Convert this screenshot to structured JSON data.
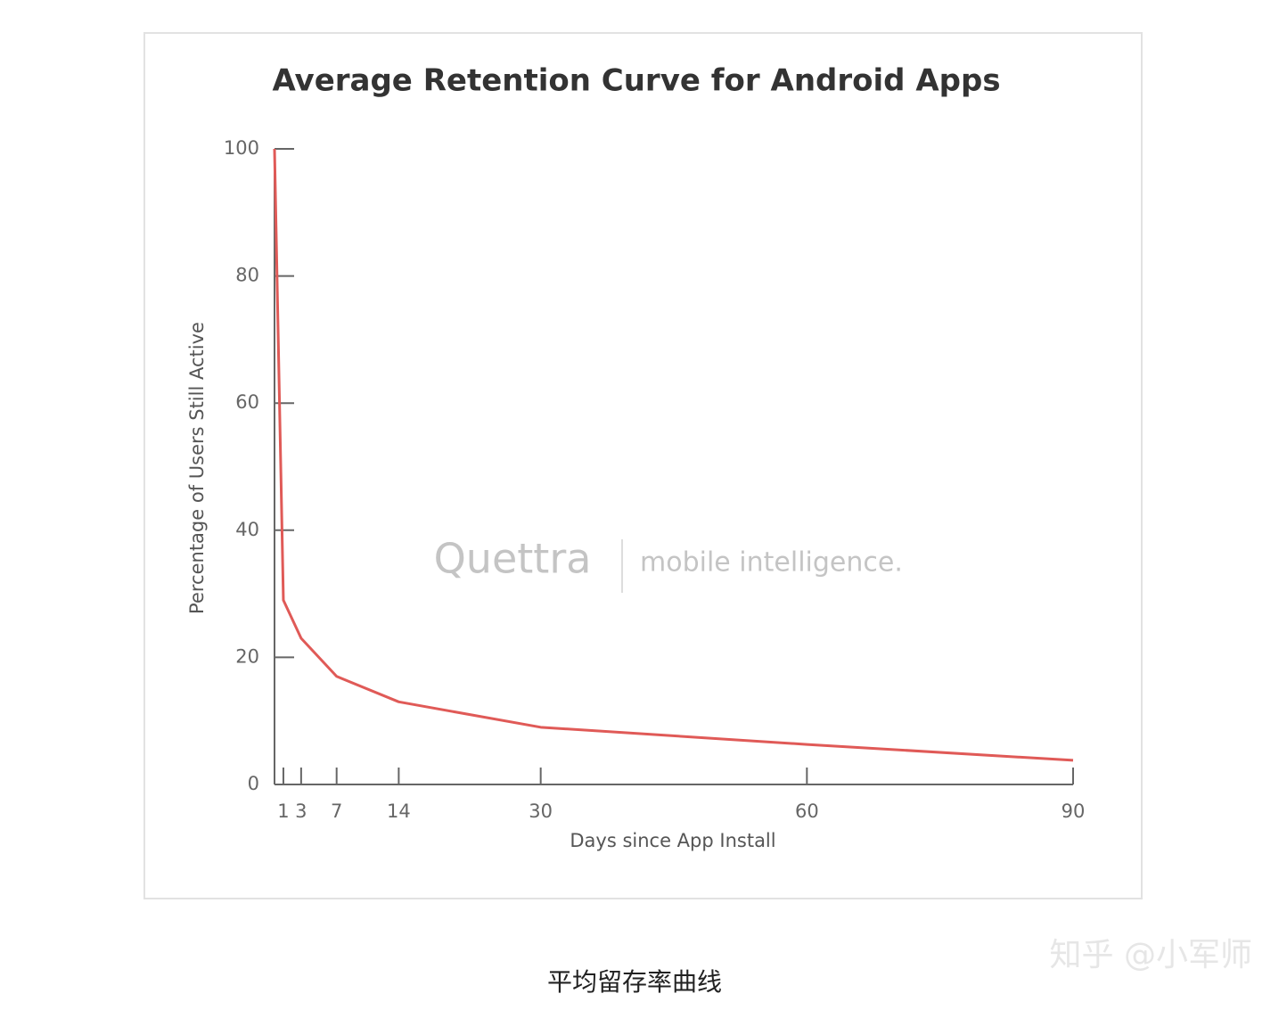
{
  "chart_data": {
    "type": "line",
    "title": "Average Retention Curve for Android Apps",
    "x_label": "Days since App Install",
    "y_label": "Percentage of Users Still Active",
    "x": [
      0,
      1,
      3,
      7,
      14,
      30,
      60,
      90
    ],
    "series": [
      {
        "name": "Android Apps",
        "color": "#e05a57",
        "values": [
          100,
          29,
          23,
          17,
          13,
          9,
          6.3,
          3.8
        ]
      }
    ],
    "xlim": [
      0,
      90
    ],
    "xticks": [
      1,
      3,
      7,
      14,
      30,
      60,
      90
    ],
    "ylim": [
      0,
      100
    ],
    "yticks": [
      0,
      20,
      40,
      60,
      80,
      100
    ],
    "watermark": {
      "logo": "Quettra",
      "tagline": "mobile intelligence."
    }
  },
  "caption": "平均留存率曲线",
  "source_mark": "知乎 @小军师"
}
